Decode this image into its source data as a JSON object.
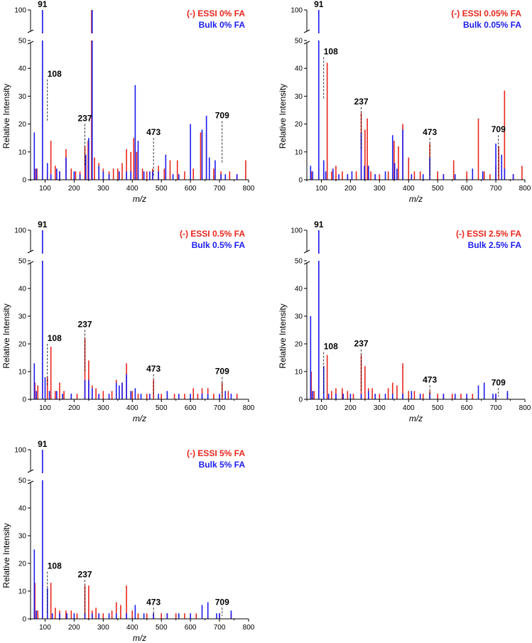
{
  "chart_data": [
    {
      "type": "bar",
      "xlabel": "m/z",
      "ylabel": "Relative Intensity",
      "xlim": [
        50,
        800
      ],
      "ylim": [
        0,
        100
      ],
      "axis_break": [
        51,
        99
      ],
      "xticks": [
        100,
        200,
        300,
        400,
        500,
        600,
        700,
        800
      ],
      "yticks": [
        0,
        10,
        20,
        30,
        40,
        50,
        100
      ],
      "xtick_labels": [
        "100",
        "200",
        "300",
        "400",
        "500",
        "600",
        "700",
        "800"
      ],
      "ytick_labels": [
        "0",
        "10",
        "20",
        "30",
        "40",
        "50",
        "100"
      ],
      "legend": [
        "(-) ESSI 0% FA",
        "Bulk 0% FA"
      ],
      "colors": {
        "essi": "#e8261c",
        "bulk": "#1c1cf0"
      },
      "peak_labels": [
        {
          "text": "91",
          "mz": 91,
          "y": 100
        },
        {
          "text": "108",
          "mz": 108,
          "y": 35
        },
        {
          "text": "237",
          "mz": 237,
          "y": 19
        },
        {
          "text": "473",
          "mz": 473,
          "y": 14
        },
        {
          "text": "709",
          "mz": 709,
          "y": 20
        }
      ],
      "series": [
        {
          "name": "(-) ESSI 0% FA",
          "mz": [
            65,
            72,
            91,
            108,
            120,
            135,
            150,
            172,
            190,
            205,
            220,
            237,
            248,
            260,
            270,
            285,
            300,
            320,
            335,
            350,
            365,
            380,
            395,
            405,
            415,
            435,
            450,
            470,
            490,
            510,
            530,
            555,
            580,
            610,
            635,
            655,
            680,
            705,
            735,
            760,
            790
          ],
          "intensity": [
            4,
            4,
            100,
            3,
            14,
            5,
            3,
            11,
            4,
            3,
            3,
            12,
            14,
            100,
            8,
            6,
            4,
            3,
            4,
            4,
            6,
            11,
            10,
            15,
            10,
            4,
            3,
            4,
            5,
            4,
            7,
            7,
            3,
            4,
            17,
            17,
            4,
            3,
            3,
            2,
            7
          ]
        },
        {
          "name": "Bulk 0% FA",
          "mz": [
            63,
            70,
            91,
            108,
            120,
            140,
            150,
            172,
            200,
            220,
            240,
            250,
            262,
            285,
            300,
            320,
            355,
            380,
            395,
            410,
            420,
            440,
            460,
            470,
            490,
            515,
            540,
            560,
            600,
            640,
            655,
            665,
            685,
            705,
            720,
            760
          ],
          "intensity": [
            17,
            4,
            100,
            6,
            2,
            4,
            3,
            8,
            3,
            2,
            9,
            15,
            100,
            5,
            3,
            2,
            3,
            3,
            3,
            34,
            14,
            3,
            3,
            3,
            3,
            9,
            2,
            2,
            20,
            18,
            23,
            8,
            7,
            2,
            2,
            2
          ]
        }
      ]
    },
    {
      "type": "bar",
      "xlabel": "m/z",
      "ylabel": "Relative Intensity",
      "xlim": [
        50,
        800
      ],
      "ylim": [
        0,
        100
      ],
      "axis_break": [
        51,
        99
      ],
      "xticks": [
        100,
        200,
        300,
        400,
        500,
        600,
        700,
        800
      ],
      "yticks": [
        0,
        10,
        20,
        30,
        40,
        50,
        100
      ],
      "xtick_labels": [
        "100",
        "200",
        "300",
        "400",
        "500",
        "600",
        "700",
        "800"
      ],
      "ytick_labels": [
        "0",
        "10",
        "20",
        "30",
        "40",
        "50",
        "100"
      ],
      "legend": [
        "(-) ESSI 0.05% FA",
        "Bulk 0.05% FA"
      ],
      "colors": {
        "essi": "#e8261c",
        "bulk": "#1c1cf0"
      },
      "peak_labels": [
        {
          "text": "91",
          "mz": 91,
          "y": 100
        },
        {
          "text": "108",
          "mz": 108,
          "y": 43
        },
        {
          "text": "237",
          "mz": 237,
          "y": 25
        },
        {
          "text": "473",
          "mz": 473,
          "y": 14
        },
        {
          "text": "709",
          "mz": 709,
          "y": 15
        }
      ],
      "series": [
        {
          "name": "(-) ESSI 0.05% FA",
          "mz": [
            65,
            91,
            108,
            120,
            135,
            150,
            172,
            190,
            220,
            237,
            250,
            258,
            270,
            285,
            300,
            330,
            350,
            365,
            380,
            400,
            420,
            440,
            473,
            500,
            520,
            555,
            600,
            640,
            660,
            680,
            700,
            710,
            730,
            760,
            790
          ],
          "intensity": [
            3,
            4,
            3,
            42,
            3,
            5,
            3,
            2,
            3,
            24,
            18,
            22,
            3,
            2,
            2,
            3,
            14,
            12,
            20,
            8,
            3,
            3,
            13,
            3,
            2,
            7,
            3,
            22,
            3,
            2,
            5,
            12,
            32,
            2,
            5
          ]
        },
        {
          "name": "Bulk 0.05% FA",
          "mz": [
            63,
            70,
            91,
            108,
            115,
            140,
            160,
            190,
            205,
            237,
            248,
            262,
            285,
            320,
            345,
            352,
            360,
            380,
            410,
            450,
            473,
            520,
            560,
            620,
            655,
            700,
            720,
            730,
            760
          ],
          "intensity": [
            5,
            3,
            100,
            7,
            3,
            4,
            2,
            2,
            3,
            17,
            5,
            5,
            2,
            3,
            16,
            6,
            4,
            18,
            2,
            2,
            8,
            2,
            2,
            4,
            3,
            13,
            9,
            4,
            2
          ]
        }
      ]
    },
    {
      "type": "bar",
      "xlabel": "m/z",
      "ylabel": "Relative Intensity",
      "xlim": [
        50,
        800
      ],
      "ylim": [
        0,
        100
      ],
      "axis_break": [
        51,
        99
      ],
      "xticks": [
        100,
        200,
        300,
        400,
        500,
        600,
        700,
        800
      ],
      "yticks": [
        0,
        10,
        20,
        30,
        40,
        50,
        100
      ],
      "xtick_labels": [
        "100",
        "200",
        "300",
        "400",
        "500",
        "600",
        "700",
        "800"
      ],
      "ytick_labels": [
        "0",
        "10",
        "20",
        "30",
        "40",
        "50",
        "100"
      ],
      "legend": [
        "(-) ESSI 0.5% FA",
        "Bulk 0.5% FA"
      ],
      "colors": {
        "essi": "#e8261c",
        "bulk": "#1c1cf0"
      },
      "peak_labels": [
        {
          "text": "91",
          "mz": 91,
          "y": 100
        },
        {
          "text": "108",
          "mz": 108,
          "y": 19
        },
        {
          "text": "237",
          "mz": 237,
          "y": 24
        },
        {
          "text": "473",
          "mz": 473,
          "y": 8
        },
        {
          "text": "709",
          "mz": 709,
          "y": 7
        }
      ],
      "series": [
        {
          "name": "(-) ESSI 0.5% FA",
          "mz": [
            65,
            75,
            91,
            108,
            120,
            135,
            150,
            165,
            190,
            210,
            237,
            250,
            262,
            275,
            300,
            330,
            345,
            365,
            380,
            400,
            420,
            450,
            473,
            500,
            520,
            545,
            580,
            610,
            625,
            640,
            660,
            680,
            709,
            730,
            760
          ],
          "intensity": [
            6,
            5,
            100,
            8,
            19,
            3,
            6,
            3,
            2,
            2,
            22,
            14,
            5,
            4,
            3,
            3,
            7,
            6,
            13,
            3,
            2,
            2,
            7,
            2,
            2,
            2,
            2,
            4,
            2,
            4,
            4,
            2,
            6,
            3,
            2
          ]
        },
        {
          "name": "Bulk 0.5% FA",
          "mz": [
            63,
            70,
            91,
            100,
            115,
            140,
            160,
            190,
            237,
            250,
            262,
            285,
            320,
            345,
            355,
            365,
            380,
            395,
            410,
            430,
            460,
            490,
            520,
            560,
            600,
            640,
            660,
            700,
            720,
            740
          ],
          "intensity": [
            13,
            3,
            100,
            8,
            3,
            3,
            2,
            2,
            7,
            7,
            4,
            2,
            2,
            6,
            5,
            6,
            9,
            3,
            4,
            2,
            2,
            2,
            3,
            2,
            2,
            2,
            2,
            2,
            3,
            2
          ]
        }
      ]
    },
    {
      "type": "bar",
      "xlabel": "m/z",
      "ylabel": "Relative Intensity",
      "xlim": [
        50,
        800
      ],
      "ylim": [
        0,
        100
      ],
      "axis_break": [
        51,
        99
      ],
      "xticks": [
        100,
        200,
        300,
        400,
        500,
        600,
        700,
        800
      ],
      "yticks": [
        0,
        10,
        20,
        30,
        40,
        50,
        100
      ],
      "xtick_labels": [
        "100",
        "200",
        "300",
        "400",
        "500",
        "600",
        "700",
        "800"
      ],
      "ytick_labels": [
        "0",
        "10",
        "20",
        "30",
        "40",
        "50",
        "100"
      ],
      "legend": [
        "(-) ESSI 2.5% FA",
        "Bulk 2.5% FA"
      ],
      "colors": {
        "essi": "#e8261c",
        "bulk": "#1c1cf0"
      },
      "peak_labels": [
        {
          "text": "91",
          "mz": 91,
          "y": 100
        },
        {
          "text": "108",
          "mz": 108,
          "y": 16
        },
        {
          "text": "237",
          "mz": 237,
          "y": 17
        },
        {
          "text": "473",
          "mz": 473,
          "y": 4
        },
        {
          "text": "709",
          "mz": 709,
          "y": 3
        }
      ],
      "series": [
        {
          "name": "(-) ESSI 2.5% FA",
          "mz": [
            65,
            75,
            91,
            108,
            120,
            135,
            150,
            172,
            190,
            210,
            237,
            250,
            262,
            275,
            300,
            330,
            345,
            360,
            380,
            400,
            420,
            450,
            473,
            500,
            520,
            550,
            580,
            620,
            660,
            700,
            740
          ],
          "intensity": [
            10,
            3,
            100,
            3,
            16,
            3,
            4,
            4,
            3,
            2,
            16,
            12,
            4,
            4,
            2,
            4,
            6,
            5,
            13,
            3,
            3,
            2,
            3,
            2,
            2,
            2,
            2,
            2,
            2,
            2,
            2
          ]
        },
        {
          "name": "Bulk 2.5% FA",
          "mz": [
            63,
            70,
            91,
            108,
            125,
            150,
            175,
            200,
            237,
            262,
            285,
            320,
            345,
            380,
            410,
            440,
            473,
            520,
            560,
            600,
            640,
            660,
            690,
            700,
            740
          ],
          "intensity": [
            30,
            3,
            100,
            12,
            2,
            2,
            2,
            2,
            2,
            3,
            2,
            2,
            2,
            2,
            3,
            2,
            2,
            2,
            2,
            2,
            5,
            6,
            2,
            2,
            3
          ]
        }
      ]
    },
    {
      "type": "bar",
      "xlabel": "m/z",
      "ylabel": "Relative Intensity",
      "xlim": [
        50,
        800
      ],
      "ylim": [
        0,
        100
      ],
      "axis_break": [
        51,
        99
      ],
      "xticks": [
        100,
        200,
        300,
        400,
        500,
        600,
        700,
        800
      ],
      "yticks": [
        0,
        10,
        20,
        30,
        40,
        50,
        100
      ],
      "xtick_labels": [
        "100",
        "200",
        "300",
        "400",
        "500",
        "600",
        "700",
        "800"
      ],
      "ytick_labels": [
        "0",
        "10",
        "20",
        "30",
        "40",
        "50",
        "100"
      ],
      "legend": [
        "(-) ESSI 5% FA",
        "Bulk 5% FA"
      ],
      "colors": {
        "essi": "#e8261c",
        "bulk": "#1c1cf0"
      },
      "peak_labels": [
        {
          "text": "91",
          "mz": 91,
          "y": 100
        },
        {
          "text": "108",
          "mz": 108,
          "y": 16
        },
        {
          "text": "237",
          "mz": 237,
          "y": 13
        },
        {
          "text": "473",
          "mz": 473,
          "y": 3
        },
        {
          "text": "709",
          "mz": 709,
          "y": 3
        }
      ],
      "series": [
        {
          "name": "(-) ESSI 5% FA",
          "mz": [
            65,
            75,
            91,
            108,
            120,
            135,
            150,
            172,
            190,
            210,
            237,
            250,
            262,
            275,
            300,
            330,
            345,
            360,
            380,
            400,
            420,
            450,
            473,
            500,
            520,
            550,
            580,
            620,
            660,
            700,
            740
          ],
          "intensity": [
            13,
            3,
            100,
            3,
            13,
            4,
            3,
            3,
            3,
            2,
            12,
            12,
            3,
            4,
            2,
            3,
            6,
            5,
            12,
            3,
            2,
            2,
            2,
            2,
            2,
            2,
            2,
            2,
            2,
            2,
            2
          ]
        },
        {
          "name": "Bulk 5% FA",
          "mz": [
            63,
            70,
            91,
            108,
            125,
            150,
            175,
            200,
            237,
            262,
            285,
            320,
            345,
            380,
            410,
            440,
            473,
            520,
            560,
            600,
            640,
            660,
            690,
            700,
            740
          ],
          "intensity": [
            25,
            3,
            100,
            11,
            2,
            2,
            2,
            2,
            2,
            2,
            2,
            2,
            2,
            2,
            5,
            2,
            2,
            2,
            2,
            2,
            5,
            6,
            2,
            2,
            3
          ]
        }
      ]
    }
  ]
}
